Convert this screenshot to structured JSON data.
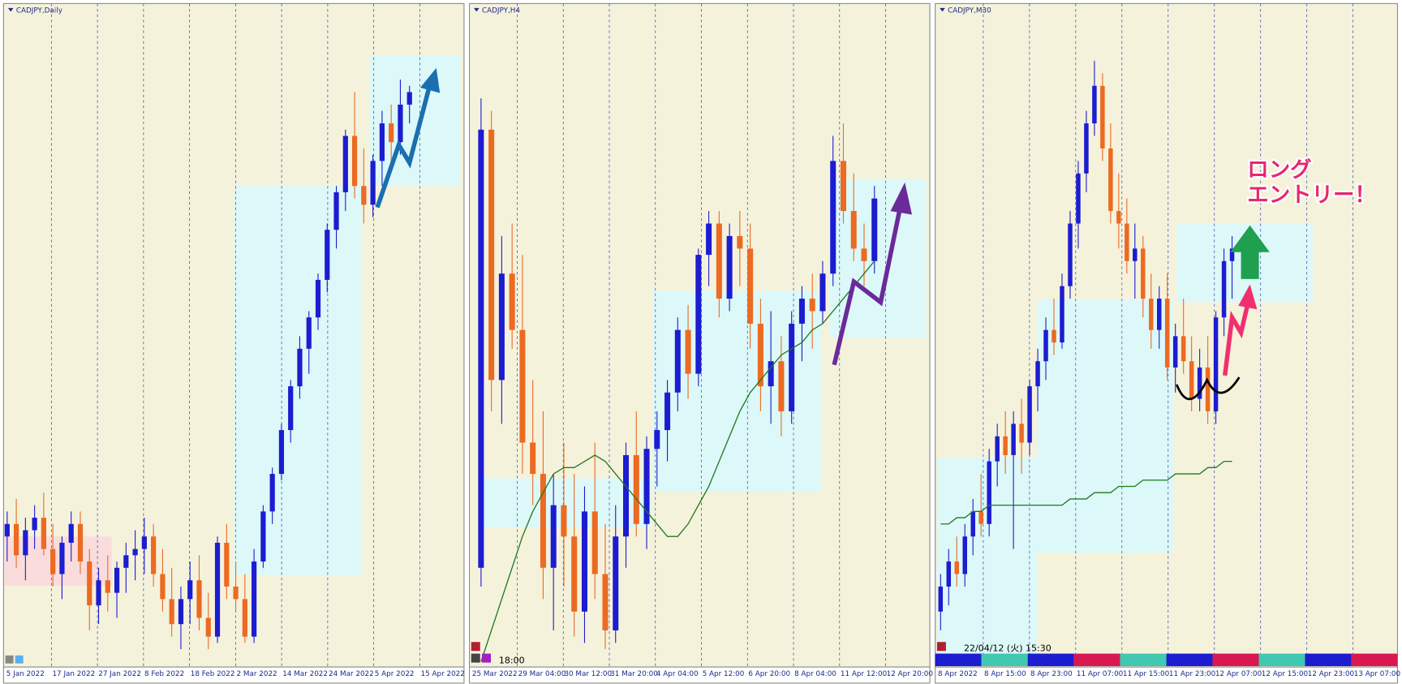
{
  "panels": [
    {
      "title": "CADJPY,Daily",
      "ylim": [
        0,
        100
      ],
      "x_labels": [
        "5 Jan 2022",
        "17 Jan 2022",
        "27 Jan 2022",
        "8 Feb 2022",
        "18 Feb 2022",
        "2 Mar 2022",
        "14 Mar 2022",
        "24 Mar 2022",
        "5 Apr 2022",
        "15 Apr 2022"
      ],
      "candles": [
        [
          20,
          24,
          16,
          22
        ],
        [
          22,
          26,
          15,
          17
        ],
        [
          17,
          23,
          13,
          21
        ],
        [
          21,
          25,
          18,
          23
        ],
        [
          23,
          27,
          17,
          18
        ],
        [
          18,
          22,
          12,
          14
        ],
        [
          14,
          20,
          10,
          19
        ],
        [
          19,
          24,
          16,
          22
        ],
        [
          22,
          24,
          14,
          16
        ],
        [
          16,
          18,
          5,
          9
        ],
        [
          9,
          15,
          6,
          13
        ],
        [
          13,
          17,
          8,
          11
        ],
        [
          11,
          16,
          7,
          15
        ],
        [
          15,
          19,
          11,
          17
        ],
        [
          17,
          21,
          13,
          18
        ],
        [
          18,
          23,
          14,
          20
        ],
        [
          20,
          22,
          12,
          14
        ],
        [
          14,
          18,
          8,
          10
        ],
        [
          10,
          15,
          4,
          6
        ],
        [
          6,
          12,
          2,
          10
        ],
        [
          10,
          16,
          6,
          13
        ],
        [
          13,
          17,
          5,
          7
        ],
        [
          7,
          11,
          2,
          4
        ],
        [
          4,
          20,
          3,
          19
        ],
        [
          19,
          22,
          10,
          12
        ],
        [
          12,
          16,
          8,
          10
        ],
        [
          10,
          14,
          3,
          4
        ],
        [
          4,
          18,
          3,
          16
        ],
        [
          16,
          25,
          15,
          24
        ],
        [
          24,
          31,
          22,
          30
        ],
        [
          30,
          38,
          29,
          37
        ],
        [
          37,
          45,
          35,
          44
        ],
        [
          44,
          52,
          42,
          50
        ],
        [
          50,
          56,
          46,
          55
        ],
        [
          55,
          62,
          53,
          61
        ],
        [
          61,
          70,
          59,
          69
        ],
        [
          69,
          76,
          66,
          75
        ],
        [
          75,
          85,
          72,
          84
        ],
        [
          84,
          91,
          74,
          76
        ],
        [
          76,
          82,
          70,
          73
        ],
        [
          73,
          81,
          71,
          80
        ],
        [
          80,
          88,
          76,
          86
        ],
        [
          86,
          89,
          80,
          83
        ],
        [
          83,
          93,
          81,
          89
        ],
        [
          89,
          92,
          86,
          91
        ]
      ]
    },
    {
      "title": "CADJPY,H4",
      "ylim": [
        0,
        100
      ],
      "time_label": "18:00",
      "x_labels": [
        "25 Mar 2022",
        "29 Mar 04:00",
        "30 Mar 12:00",
        "31 Mar 20:00",
        "4 Apr 04:00",
        "5 Apr 12:00",
        "6 Apr 20:00",
        "8 Apr 04:00",
        "11 Apr 12:00",
        "12 Apr 20:00"
      ],
      "candles": [
        [
          15,
          90,
          12,
          85
        ],
        [
          85,
          88,
          40,
          45
        ],
        [
          45,
          68,
          38,
          62
        ],
        [
          62,
          70,
          50,
          53
        ],
        [
          53,
          65,
          30,
          35
        ],
        [
          35,
          45,
          25,
          30
        ],
        [
          30,
          40,
          10,
          15
        ],
        [
          15,
          30,
          5,
          25
        ],
        [
          25,
          35,
          12,
          20
        ],
        [
          20,
          30,
          4,
          8
        ],
        [
          8,
          28,
          3,
          24
        ],
        [
          24,
          35,
          10,
          14
        ],
        [
          14,
          22,
          2,
          5
        ],
        [
          5,
          25,
          3,
          20
        ],
        [
          20,
          35,
          15,
          33
        ],
        [
          33,
          40,
          20,
          22
        ],
        [
          22,
          36,
          18,
          34
        ],
        [
          34,
          40,
          28,
          37
        ],
        [
          37,
          45,
          32,
          43
        ],
        [
          43,
          55,
          40,
          53
        ],
        [
          53,
          57,
          42,
          46
        ],
        [
          46,
          66,
          44,
          65
        ],
        [
          65,
          72,
          60,
          70
        ],
        [
          70,
          72,
          55,
          58
        ],
        [
          58,
          70,
          56,
          68
        ],
        [
          68,
          72,
          60,
          66
        ],
        [
          66,
          70,
          50,
          54
        ],
        [
          54,
          58,
          40,
          44
        ],
        [
          44,
          56,
          38,
          48
        ],
        [
          48,
          52,
          36,
          40
        ],
        [
          40,
          56,
          38,
          54
        ],
        [
          54,
          60,
          48,
          58
        ],
        [
          58,
          62,
          50,
          56
        ],
        [
          56,
          64,
          54,
          62
        ],
        [
          62,
          84,
          60,
          80
        ],
        [
          80,
          86,
          70,
          72
        ],
        [
          72,
          78,
          64,
          66
        ],
        [
          66,
          70,
          60,
          64
        ],
        [
          64,
          76,
          62,
          74
        ]
      ],
      "ma": [
        0,
        5,
        10,
        15,
        20,
        24,
        27,
        30,
        31,
        31,
        32,
        33,
        32,
        30,
        28,
        26,
        24,
        22,
        20,
        20,
        22,
        25,
        28,
        32,
        36,
        40,
        43,
        45,
        47,
        49,
        50,
        51,
        53,
        54,
        56,
        58,
        60,
        62,
        64
      ]
    },
    {
      "title": "CADJPY,M30",
      "ylim": [
        0,
        100
      ],
      "time_label": "22/04/12 (火) 15:30",
      "x_labels": [
        "8 Apr 2022",
        "8 Apr 15:00",
        "8 Apr 23:00",
        "11 Apr 07:00",
        "11 Apr 15:00",
        "11 Apr 23:00",
        "12 Apr 07:00",
        "12 Apr 15:00",
        "12 Apr 23:00",
        "13 Apr 07:00"
      ],
      "candles": [
        [
          8,
          14,
          5,
          12
        ],
        [
          12,
          18,
          9,
          16
        ],
        [
          16,
          20,
          12,
          14
        ],
        [
          14,
          22,
          12,
          20
        ],
        [
          20,
          26,
          17,
          24
        ],
        [
          24,
          30,
          20,
          22
        ],
        [
          22,
          34,
          20,
          32
        ],
        [
          32,
          38,
          28,
          36
        ],
        [
          36,
          40,
          30,
          33
        ],
        [
          33,
          40,
          18,
          38
        ],
        [
          38,
          42,
          30,
          35
        ],
        [
          35,
          45,
          33,
          44
        ],
        [
          44,
          50,
          40,
          48
        ],
        [
          48,
          55,
          45,
          53
        ],
        [
          53,
          58,
          49,
          51
        ],
        [
          51,
          62,
          50,
          60
        ],
        [
          60,
          72,
          58,
          70
        ],
        [
          70,
          80,
          66,
          78
        ],
        [
          78,
          88,
          75,
          86
        ],
        [
          86,
          96,
          84,
          92
        ],
        [
          92,
          94,
          80,
          82
        ],
        [
          82,
          86,
          70,
          72
        ],
        [
          72,
          78,
          66,
          70
        ],
        [
          70,
          74,
          62,
          64
        ],
        [
          64,
          70,
          58,
          66
        ],
        [
          66,
          68,
          55,
          58
        ],
        [
          58,
          62,
          50,
          53
        ],
        [
          53,
          60,
          50,
          58
        ],
        [
          58,
          62,
          45,
          47
        ],
        [
          47,
          54,
          43,
          52
        ],
        [
          52,
          58,
          46,
          48
        ],
        [
          48,
          52,
          40,
          42
        ],
        [
          42,
          50,
          40,
          47
        ],
        [
          47,
          52,
          38,
          40
        ],
        [
          40,
          56,
          38,
          55
        ],
        [
          55,
          66,
          52,
          64
        ],
        [
          64,
          68,
          58,
          66
        ]
      ],
      "ma": [
        22,
        22,
        23,
        23,
        24,
        24,
        25,
        25,
        25,
        25,
        25,
        25,
        25,
        25,
        25,
        25,
        26,
        26,
        26,
        27,
        27,
        27,
        28,
        28,
        28,
        29,
        29,
        29,
        29,
        30,
        30,
        30,
        30,
        31,
        31,
        32,
        32
      ]
    }
  ],
  "annotation": {
    "lines": [
      "ロング",
      "エントリー！"
    ]
  }
}
